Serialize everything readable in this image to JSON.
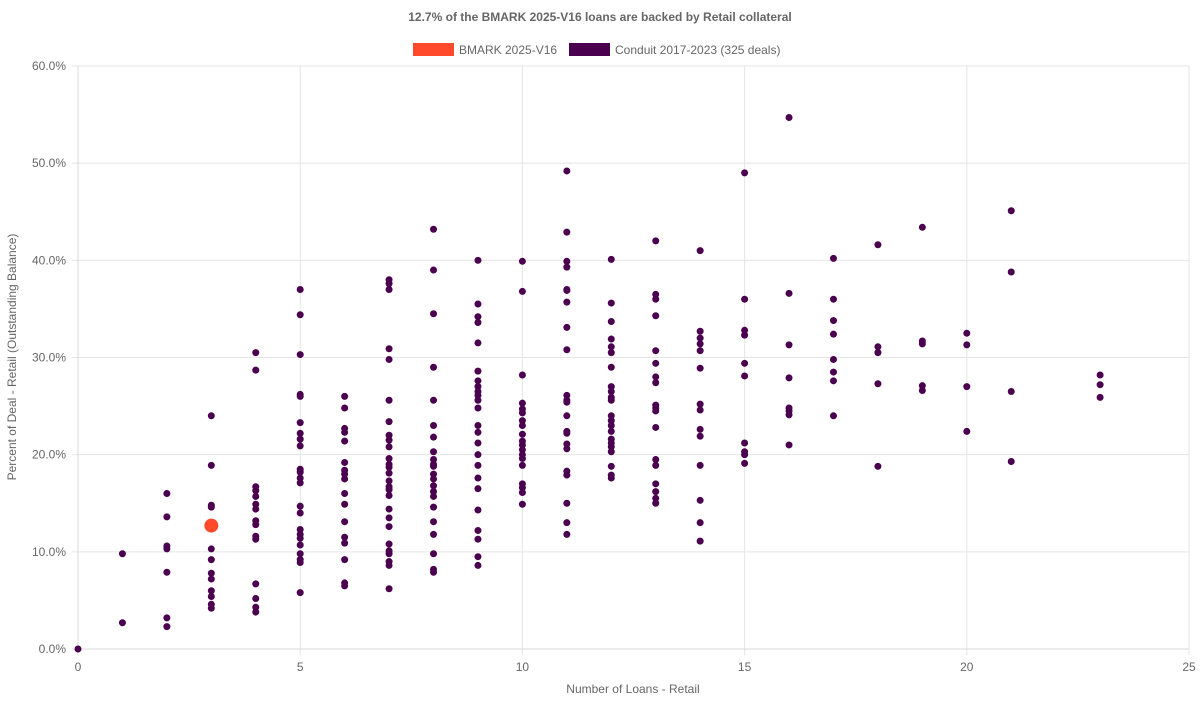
{
  "chart_data": {
    "type": "scatter",
    "title": "12.7% of the BMARK 2025-V16 loans are backed by Retail collateral",
    "xlabel": "Number of Loans - Retail",
    "ylabel": "Percent of Deal - Retail (Outstanding Balance)",
    "xlim": [
      0,
      25
    ],
    "ylim": [
      0,
      60
    ],
    "x_ticks": [
      0,
      5,
      10,
      15,
      20,
      25
    ],
    "y_ticks": [
      0,
      10,
      20,
      30,
      40,
      50,
      60
    ],
    "x_tick_labels": [
      "0",
      "5",
      "10",
      "15",
      "20",
      "25"
    ],
    "y_tick_labels": [
      "0.0%",
      "10.0%",
      "20.0%",
      "30.0%",
      "40.0%",
      "50.0%",
      "60.0%"
    ],
    "grid": true,
    "legend_position": "top",
    "series": [
      {
        "name": "BMARK 2025-V16",
        "color": "#ff4b2b",
        "marker": "large",
        "points": [
          [
            3,
            12.7
          ]
        ]
      },
      {
        "name": "Conduit 2017-2023 (325 deals)",
        "color": "#4b004f",
        "marker": "small",
        "points": [
          [
            0,
            0
          ],
          [
            1,
            9.8
          ],
          [
            1,
            2.7
          ],
          [
            2,
            16.0
          ],
          [
            2,
            13.6
          ],
          [
            2,
            10.6
          ],
          [
            2,
            10.3
          ],
          [
            2,
            7.9
          ],
          [
            2,
            3.2
          ],
          [
            2,
            2.3
          ],
          [
            3,
            24.0
          ],
          [
            3,
            18.9
          ],
          [
            3,
            14.8
          ],
          [
            3,
            14.6
          ],
          [
            3,
            10.3
          ],
          [
            3,
            9.2
          ],
          [
            3,
            7.8
          ],
          [
            3,
            7.2
          ],
          [
            3,
            6.0
          ],
          [
            3,
            5.4
          ],
          [
            3,
            4.6
          ],
          [
            3,
            4.2
          ],
          [
            4,
            30.5
          ],
          [
            4,
            28.7
          ],
          [
            4,
            16.7
          ],
          [
            4,
            16.3
          ],
          [
            4,
            15.7
          ],
          [
            4,
            14.9
          ],
          [
            4,
            14.4
          ],
          [
            4,
            13.2
          ],
          [
            4,
            12.8
          ],
          [
            4,
            11.6
          ],
          [
            4,
            11.3
          ],
          [
            4,
            6.7
          ],
          [
            4,
            5.2
          ],
          [
            4,
            4.3
          ],
          [
            4,
            3.8
          ],
          [
            5,
            37.0
          ],
          [
            5,
            34.4
          ],
          [
            5,
            30.3
          ],
          [
            5,
            26.2
          ],
          [
            5,
            26.0
          ],
          [
            5,
            23.3
          ],
          [
            5,
            22.2
          ],
          [
            5,
            21.6
          ],
          [
            5,
            20.9
          ],
          [
            5,
            18.5
          ],
          [
            5,
            18.2
          ],
          [
            5,
            17.6
          ],
          [
            5,
            17.1
          ],
          [
            5,
            14.7
          ],
          [
            5,
            14.0
          ],
          [
            5,
            12.3
          ],
          [
            5,
            11.8
          ],
          [
            5,
            11.4
          ],
          [
            5,
            10.7
          ],
          [
            5,
            9.8
          ],
          [
            5,
            9.2
          ],
          [
            5,
            8.9
          ],
          [
            5,
            5.8
          ],
          [
            6,
            26.0
          ],
          [
            6,
            24.8
          ],
          [
            6,
            22.7
          ],
          [
            6,
            22.3
          ],
          [
            6,
            21.4
          ],
          [
            6,
            19.2
          ],
          [
            6,
            18.4
          ],
          [
            6,
            18.0
          ],
          [
            6,
            17.5
          ],
          [
            6,
            16.0
          ],
          [
            6,
            14.9
          ],
          [
            6,
            13.1
          ],
          [
            6,
            11.5
          ],
          [
            6,
            10.9
          ],
          [
            6,
            9.2
          ],
          [
            6,
            6.8
          ],
          [
            6,
            6.5
          ],
          [
            7,
            38.0
          ],
          [
            7,
            37.6
          ],
          [
            7,
            37.0
          ],
          [
            7,
            30.9
          ],
          [
            7,
            29.8
          ],
          [
            7,
            25.6
          ],
          [
            7,
            23.4
          ],
          [
            7,
            22.0
          ],
          [
            7,
            21.5
          ],
          [
            7,
            20.8
          ],
          [
            7,
            19.6
          ],
          [
            7,
            19.0
          ],
          [
            7,
            18.7
          ],
          [
            7,
            18.1
          ],
          [
            7,
            17.3
          ],
          [
            7,
            16.7
          ],
          [
            7,
            16.4
          ],
          [
            7,
            15.8
          ],
          [
            7,
            14.4
          ],
          [
            7,
            13.5
          ],
          [
            7,
            12.6
          ],
          [
            7,
            10.8
          ],
          [
            7,
            10.1
          ],
          [
            7,
            9.8
          ],
          [
            7,
            9.0
          ],
          [
            7,
            8.6
          ],
          [
            7,
            6.2
          ],
          [
            8,
            43.2
          ],
          [
            8,
            39.0
          ],
          [
            8,
            34.5
          ],
          [
            8,
            29.0
          ],
          [
            8,
            25.6
          ],
          [
            8,
            23.0
          ],
          [
            8,
            21.8
          ],
          [
            8,
            20.3
          ],
          [
            8,
            19.5
          ],
          [
            8,
            19.0
          ],
          [
            8,
            18.8
          ],
          [
            8,
            18.0
          ],
          [
            8,
            17.5
          ],
          [
            8,
            16.8
          ],
          [
            8,
            16.2
          ],
          [
            8,
            15.7
          ],
          [
            8,
            14.6
          ],
          [
            8,
            13.1
          ],
          [
            8,
            11.8
          ],
          [
            8,
            9.8
          ],
          [
            8,
            8.2
          ],
          [
            8,
            7.9
          ],
          [
            9,
            40.0
          ],
          [
            9,
            35.5
          ],
          [
            9,
            34.2
          ],
          [
            9,
            33.6
          ],
          [
            9,
            31.5
          ],
          [
            9,
            28.6
          ],
          [
            9,
            27.6
          ],
          [
            9,
            27.0
          ],
          [
            9,
            26.5
          ],
          [
            9,
            26.1
          ],
          [
            9,
            25.6
          ],
          [
            9,
            24.8
          ],
          [
            9,
            23.0
          ],
          [
            9,
            22.3
          ],
          [
            9,
            21.2
          ],
          [
            9,
            20.0
          ],
          [
            9,
            18.9
          ],
          [
            9,
            17.6
          ],
          [
            9,
            16.5
          ],
          [
            9,
            14.3
          ],
          [
            9,
            12.2
          ],
          [
            9,
            11.3
          ],
          [
            9,
            9.5
          ],
          [
            9,
            8.6
          ],
          [
            10,
            39.9
          ],
          [
            10,
            36.8
          ],
          [
            10,
            28.2
          ],
          [
            10,
            25.3
          ],
          [
            10,
            24.7
          ],
          [
            10,
            24.3
          ],
          [
            10,
            23.5
          ],
          [
            10,
            23.0
          ],
          [
            10,
            22.1
          ],
          [
            10,
            21.4
          ],
          [
            10,
            21.0
          ],
          [
            10,
            20.5
          ],
          [
            10,
            20.0
          ],
          [
            10,
            19.6
          ],
          [
            10,
            18.9
          ],
          [
            10,
            17.0
          ],
          [
            10,
            16.6
          ],
          [
            10,
            16.1
          ],
          [
            10,
            14.9
          ],
          [
            11,
            49.2
          ],
          [
            11,
            42.9
          ],
          [
            11,
            39.9
          ],
          [
            11,
            39.3
          ],
          [
            11,
            37.0
          ],
          [
            11,
            36.9
          ],
          [
            11,
            35.7
          ],
          [
            11,
            33.1
          ],
          [
            11,
            30.8
          ],
          [
            11,
            26.1
          ],
          [
            11,
            25.6
          ],
          [
            11,
            25.4
          ],
          [
            11,
            24.0
          ],
          [
            11,
            22.4
          ],
          [
            11,
            22.2
          ],
          [
            11,
            21.1
          ],
          [
            11,
            20.6
          ],
          [
            11,
            18.3
          ],
          [
            11,
            17.9
          ],
          [
            11,
            15.0
          ],
          [
            11,
            13.0
          ],
          [
            11,
            11.8
          ],
          [
            12,
            40.1
          ],
          [
            12,
            35.6
          ],
          [
            12,
            33.7
          ],
          [
            12,
            31.9
          ],
          [
            12,
            31.1
          ],
          [
            12,
            30.5
          ],
          [
            12,
            29.0
          ],
          [
            12,
            27.0
          ],
          [
            12,
            26.5
          ],
          [
            12,
            25.9
          ],
          [
            12,
            25.6
          ],
          [
            12,
            24.0
          ],
          [
            12,
            23.5
          ],
          [
            12,
            23.0
          ],
          [
            12,
            22.4
          ],
          [
            12,
            21.6
          ],
          [
            12,
            21.2
          ],
          [
            12,
            20.8
          ],
          [
            12,
            20.3
          ],
          [
            12,
            18.8
          ],
          [
            12,
            17.9
          ],
          [
            12,
            17.6
          ],
          [
            13,
            42.0
          ],
          [
            13,
            36.5
          ],
          [
            13,
            36.0
          ],
          [
            13,
            34.3
          ],
          [
            13,
            30.7
          ],
          [
            13,
            29.4
          ],
          [
            13,
            28.0
          ],
          [
            13,
            27.4
          ],
          [
            13,
            25.1
          ],
          [
            13,
            24.8
          ],
          [
            13,
            24.5
          ],
          [
            13,
            22.8
          ],
          [
            13,
            19.5
          ],
          [
            13,
            18.9
          ],
          [
            13,
            17.0
          ],
          [
            13,
            16.2
          ],
          [
            13,
            15.5
          ],
          [
            13,
            15.0
          ],
          [
            14,
            41.0
          ],
          [
            14,
            32.7
          ],
          [
            14,
            32.0
          ],
          [
            14,
            31.4
          ],
          [
            14,
            30.7
          ],
          [
            14,
            28.9
          ],
          [
            14,
            25.2
          ],
          [
            14,
            24.6
          ],
          [
            14,
            22.6
          ],
          [
            14,
            21.9
          ],
          [
            14,
            18.9
          ],
          [
            14,
            15.3
          ],
          [
            14,
            13.0
          ],
          [
            14,
            11.1
          ],
          [
            15,
            49.0
          ],
          [
            15,
            36.0
          ],
          [
            15,
            32.8
          ],
          [
            15,
            32.3
          ],
          [
            15,
            29.4
          ],
          [
            15,
            28.1
          ],
          [
            15,
            21.2
          ],
          [
            15,
            20.3
          ],
          [
            15,
            20.0
          ],
          [
            15,
            19.1
          ],
          [
            16,
            54.7
          ],
          [
            16,
            36.6
          ],
          [
            16,
            31.3
          ],
          [
            16,
            27.9
          ],
          [
            16,
            24.8
          ],
          [
            16,
            24.5
          ],
          [
            16,
            24.1
          ],
          [
            16,
            21.0
          ],
          [
            17,
            40.2
          ],
          [
            17,
            36.0
          ],
          [
            17,
            33.8
          ],
          [
            17,
            32.4
          ],
          [
            17,
            29.8
          ],
          [
            17,
            28.5
          ],
          [
            17,
            27.6
          ],
          [
            17,
            24.0
          ],
          [
            18,
            41.6
          ],
          [
            18,
            31.1
          ],
          [
            18,
            30.5
          ],
          [
            18,
            27.3
          ],
          [
            18,
            18.8
          ],
          [
            19,
            43.4
          ],
          [
            19,
            31.7
          ],
          [
            19,
            31.4
          ],
          [
            19,
            27.1
          ],
          [
            19,
            26.6
          ],
          [
            20,
            32.5
          ],
          [
            20,
            31.3
          ],
          [
            20,
            27.0
          ],
          [
            20,
            22.4
          ],
          [
            21,
            45.1
          ],
          [
            21,
            38.8
          ],
          [
            21,
            26.5
          ],
          [
            21,
            19.3
          ],
          [
            23,
            28.2
          ],
          [
            23,
            27.2
          ],
          [
            23,
            25.9
          ]
        ]
      }
    ]
  }
}
